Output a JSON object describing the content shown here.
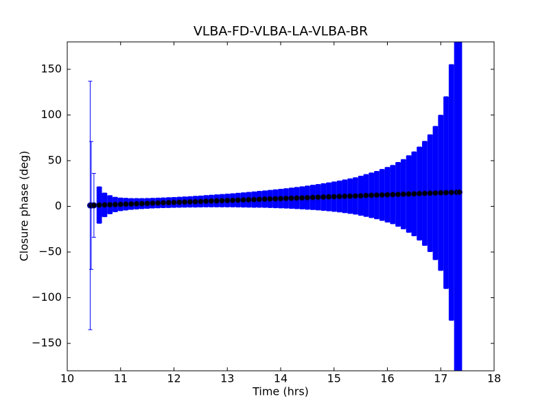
{
  "chart_data": {
    "type": "errorbar",
    "title": "VLBA-FD-VLBA-LA-VLBA-BR",
    "x_label": "Time (hrs)",
    "y_label": "Closure phase (deg)",
    "x": [
      10.43,
      10.45,
      10.5,
      10.6,
      10.7,
      10.8,
      10.9,
      11.0,
      11.1,
      11.2,
      11.3,
      11.4,
      11.5,
      11.6,
      11.7,
      11.8,
      11.9,
      12.0,
      12.1,
      12.2,
      12.3,
      12.4,
      12.5,
      12.6,
      12.7,
      12.8,
      12.9,
      13.0,
      13.1,
      13.2,
      13.3,
      13.4,
      13.5,
      13.6,
      13.7,
      13.8,
      13.9,
      14.0,
      14.1,
      14.2,
      14.3,
      14.4,
      14.5,
      14.6,
      14.7,
      14.8,
      14.9,
      15.0,
      15.1,
      15.2,
      15.3,
      15.4,
      15.5,
      15.6,
      15.7,
      15.8,
      15.9,
      16.0,
      16.1,
      16.2,
      16.3,
      16.4,
      16.5,
      16.6,
      16.7,
      16.8,
      16.9,
      17.0,
      17.1,
      17.2,
      17.3,
      17.35
    ],
    "values": [
      1.0,
      1.0,
      1.1,
      1.4,
      1.6,
      1.8,
      2.0,
      2.2,
      2.4,
      2.6,
      2.8,
      3.0,
      3.2,
      3.5,
      3.7,
      3.9,
      4.1,
      4.3,
      4.5,
      4.7,
      4.9,
      5.1,
      5.3,
      5.6,
      5.8,
      6.0,
      6.2,
      6.4,
      6.6,
      6.8,
      7.0,
      7.2,
      7.4,
      7.7,
      7.9,
      8.1,
      8.3,
      8.5,
      8.7,
      8.9,
      9.1,
      9.3,
      9.5,
      9.8,
      10.0,
      10.2,
      10.4,
      10.6,
      10.8,
      11.0,
      11.2,
      11.4,
      11.6,
      11.9,
      12.1,
      12.3,
      12.5,
      12.7,
      12.9,
      13.1,
      13.3,
      13.5,
      13.7,
      14.0,
      14.2,
      14.4,
      14.6,
      14.8,
      15.0,
      15.2,
      15.4,
      15.5
    ],
    "errors": [
      136,
      70,
      35,
      20,
      13,
      10,
      8,
      7,
      6.5,
      6,
      5.8,
      5.6,
      5.5,
      5.4,
      5.4,
      5.4,
      5.5,
      5.5,
      5.6,
      5.7,
      5.8,
      6,
      6.1,
      6.3,
      6.5,
      6.7,
      6.9,
      7.1,
      7.3,
      7.6,
      7.9,
      8.2,
      8.5,
      8.8,
      9.1,
      9.5,
      9.9,
      10.3,
      10.7,
      11.2,
      11.7,
      12.2,
      12.8,
      13.4,
      14,
      14.7,
      15.4,
      16.2,
      17,
      18,
      19,
      20,
      21.5,
      23,
      24.5,
      26,
      28,
      30,
      32,
      35,
      38,
      42,
      46,
      51,
      57,
      64,
      73,
      85,
      105,
      140,
      200,
      250
    ],
    "color": "#0000ff",
    "marker_color": "#000000",
    "xlim": [
      10,
      18
    ],
    "xticks": [
      10,
      11,
      12,
      13,
      14,
      15,
      16,
      17,
      18
    ],
    "ylim": [
      -180,
      180
    ],
    "yticks": [
      {
        "value": -150,
        "label": "−150"
      },
      {
        "value": -100,
        "label": "−100"
      },
      {
        "value": -50,
        "label": "−50"
      },
      0,
      50,
      100,
      150
    ]
  }
}
